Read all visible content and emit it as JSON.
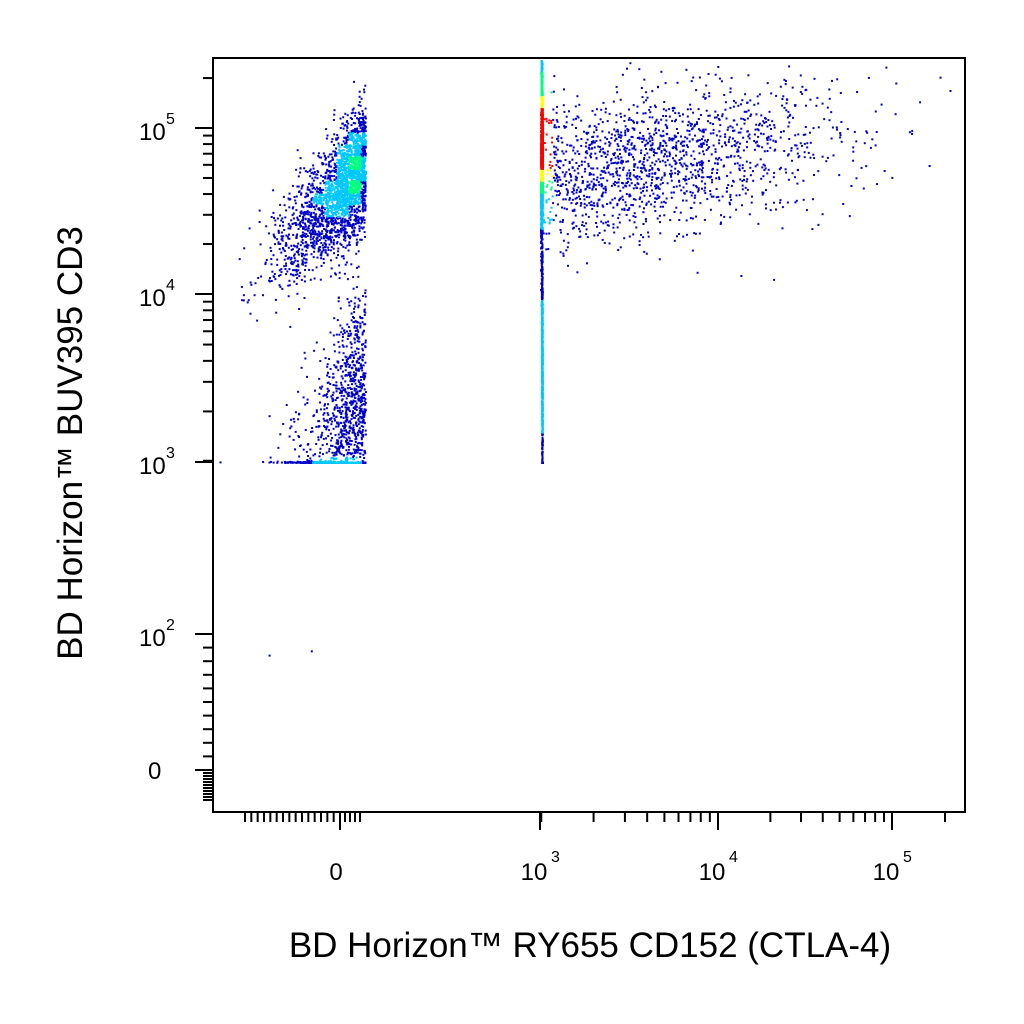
{
  "chart_data": {
    "type": "scatter",
    "title": "",
    "xlabel": "BD Horizon™ RY655 CD152 (CTLA-4)",
    "ylabel": "BD Horizon™ BUV395 CD3",
    "x_scale": "biexponential",
    "y_scale": "biexponential",
    "xlim": [
      -300,
      200000
    ],
    "ylim": [
      -100,
      250000
    ],
    "grid": false,
    "legend": "none",
    "density_colormap": [
      "#0000c8",
      "#00c8ff",
      "#00ff80",
      "#ffff00",
      "#ff0000"
    ],
    "x_ticks": [
      {
        "base": "0",
        "exp": ""
      },
      {
        "base": "10",
        "exp": "3"
      },
      {
        "base": "10",
        "exp": "4"
      },
      {
        "base": "10",
        "exp": "5"
      }
    ],
    "y_ticks": [
      {
        "base": "10",
        "exp": "5"
      },
      {
        "base": "10",
        "exp": "4"
      },
      {
        "base": "10",
        "exp": "3"
      },
      {
        "base": "10",
        "exp": "2"
      },
      {
        "base": "0",
        "exp": ""
      }
    ],
    "populations": [
      {
        "label_shown": false,
        "x_center": 100,
        "y_center": 65000,
        "x_spread": 0.55,
        "y_spread": 0.17,
        "share": 0.55
      },
      {
        "label_shown": false,
        "x_center": 3000,
        "y_center": 60000,
        "x_spread": 0.6,
        "y_spread": 0.22,
        "share": 0.22
      },
      {
        "label_shown": false,
        "x_center": 80,
        "y_center": 2500,
        "x_spread": 0.45,
        "y_spread": 0.3,
        "share": 0.23
      }
    ]
  }
}
